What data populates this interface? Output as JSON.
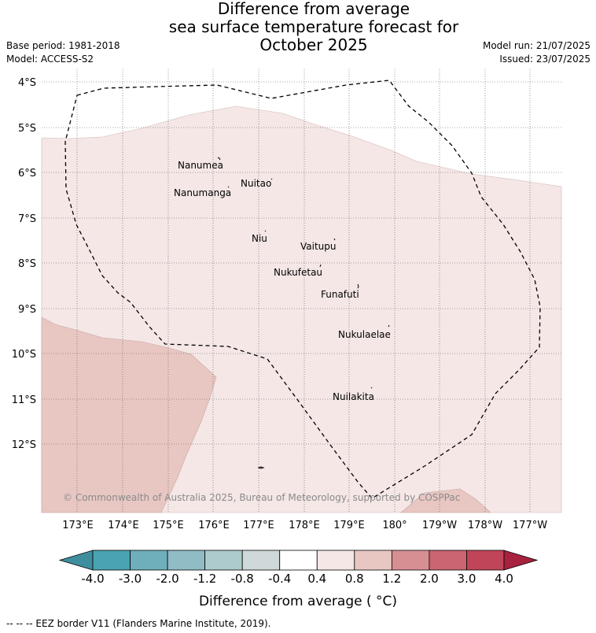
{
  "title": {
    "line1": "Difference from average",
    "line2": "sea surface temperature forecast for",
    "line3": "October 2025"
  },
  "meta_left": {
    "base_period": "Base period: 1981-2018",
    "model": "Model: ACCESS-S2"
  },
  "meta_right": {
    "model_run": "Model run: 21/07/2025",
    "issued": "Issued: 23/07/2025"
  },
  "map": {
    "lat_labels": [
      "4°S",
      "5°S",
      "6°S",
      "7°S",
      "8°S",
      "9°S",
      "10°S",
      "11°S",
      "12°S"
    ],
    "lon_labels": [
      "173°E",
      "174°E",
      "175°E",
      "176°E",
      "177°E",
      "178°E",
      "179°E",
      "180°",
      "179°W",
      "178°W",
      "177°W"
    ],
    "islands": [
      "Nanumea",
      "Nuitao",
      "Nanumanga",
      "Niu",
      "Vaitupu",
      "Nukufetau",
      "Funafuti",
      "Nukulaelae",
      "Nuilakita"
    ],
    "copyright": "© Commonwealth of Australia 2025, Bureau of Meteorology, supported by COSPPac",
    "colors": {
      "anomaly_0_4_to_0_8": "#f4e7e6",
      "anomaly_0_8_to_1_2": "#e8c7c3",
      "eez_border": "#000000"
    }
  },
  "colorbar": {
    "tick_labels": [
      "-4.0",
      "-3.0",
      "-2.0",
      "-1.2",
      "-0.8",
      "-0.4",
      "0.4",
      "0.8",
      "1.2",
      "2.0",
      "3.0",
      "4.0"
    ],
    "colors": [
      "#3e8e9e",
      "#4aa3b2",
      "#6eafbb",
      "#8fbcc5",
      "#adcbcd",
      "#d0d9da",
      "#ffffff",
      "#f4e7e6",
      "#e8c7c3",
      "#d88f94",
      "#cb6572",
      "#c14558",
      "#a8213f"
    ],
    "label": "Difference from average ( °C)"
  },
  "footer": "--  --  -- EEZ border V11 (Flanders Marine Institute, 2019)."
}
